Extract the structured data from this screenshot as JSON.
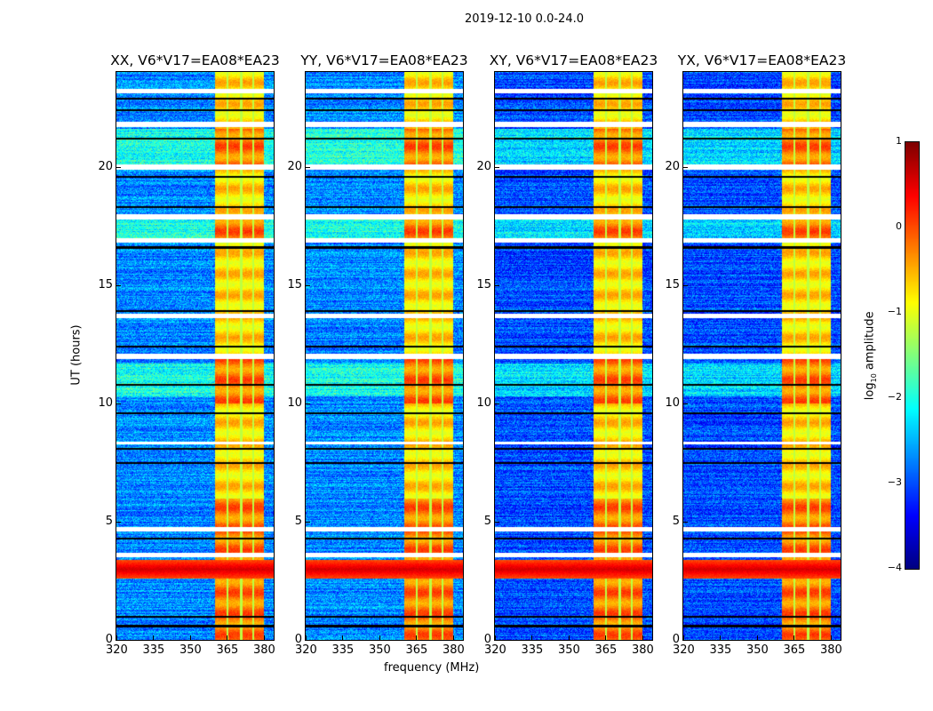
{
  "chart_data": {
    "type": "heatmap",
    "suptitle": "2019-12-10 0.0-24.0",
    "panels": [
      {
        "title": "XX, V6*V17=EA08*EA23"
      },
      {
        "title": "YY, V6*V17=EA08*EA23"
      },
      {
        "title": "XY, V6*V17=EA08*EA23"
      },
      {
        "title": "YX, V6*V17=EA08*EA23"
      }
    ],
    "xlabel": "frequency (MHz)",
    "ylabel": "UT (hours)",
    "xlim": [
      320,
      384
    ],
    "ylim": [
      0,
      24
    ],
    "xticks": [
      "320",
      "335",
      "350",
      "365",
      "380"
    ],
    "xtick_values": [
      320,
      335,
      350,
      365,
      380
    ],
    "yticks": [
      "0",
      "5",
      "10",
      "15",
      "20"
    ],
    "ytick_values": [
      0,
      5,
      10,
      15,
      20
    ],
    "colorbar": {
      "label": "log10 amplitude",
      "label_main": "log",
      "label_sub": "10",
      "label_rest": " amplitude",
      "range": [
        -4,
        1
      ],
      "ticks": [
        "1",
        "0",
        "−1",
        "−2",
        "−3",
        "−4"
      ],
      "tick_values": [
        1,
        0,
        -1,
        -2,
        -3,
        -4
      ],
      "colormap": "jet"
    },
    "features": {
      "background_log_amp": -2.7,
      "rfi_band_mhz": [
        360,
        380
      ],
      "rfi_channel_gaps_mhz": [
        365,
        370.5,
        375.5
      ],
      "rfi_band_log_amp": -0.7,
      "strong_interval_hours": [
        2.6,
        3.4
      ],
      "strong_interval_log_amp": 0.6,
      "elevated_intervals_hours": [
        [
          10.3,
          11.7
        ],
        [
          17.0,
          18.0
        ],
        [
          20.0,
          21.6
        ]
      ],
      "flagged_hours": [
        [
          3.5,
          3.7
        ],
        [
          4.6,
          4.8
        ],
        [
          8.3,
          8.4
        ],
        [
          11.9,
          12.1
        ],
        [
          13.6,
          13.8
        ],
        [
          16.8,
          17.0
        ],
        [
          17.8,
          18.0
        ],
        [
          19.9,
          20.1
        ],
        [
          21.7,
          21.9
        ],
        [
          23.1,
          23.3
        ]
      ],
      "black_lines_hours": [
        0.6,
        1.0,
        4.3,
        7.5,
        8.1,
        9.6,
        10.8,
        12.4,
        13.9,
        16.6,
        18.3,
        19.6,
        21.2,
        22.4,
        22.9
      ]
    }
  }
}
